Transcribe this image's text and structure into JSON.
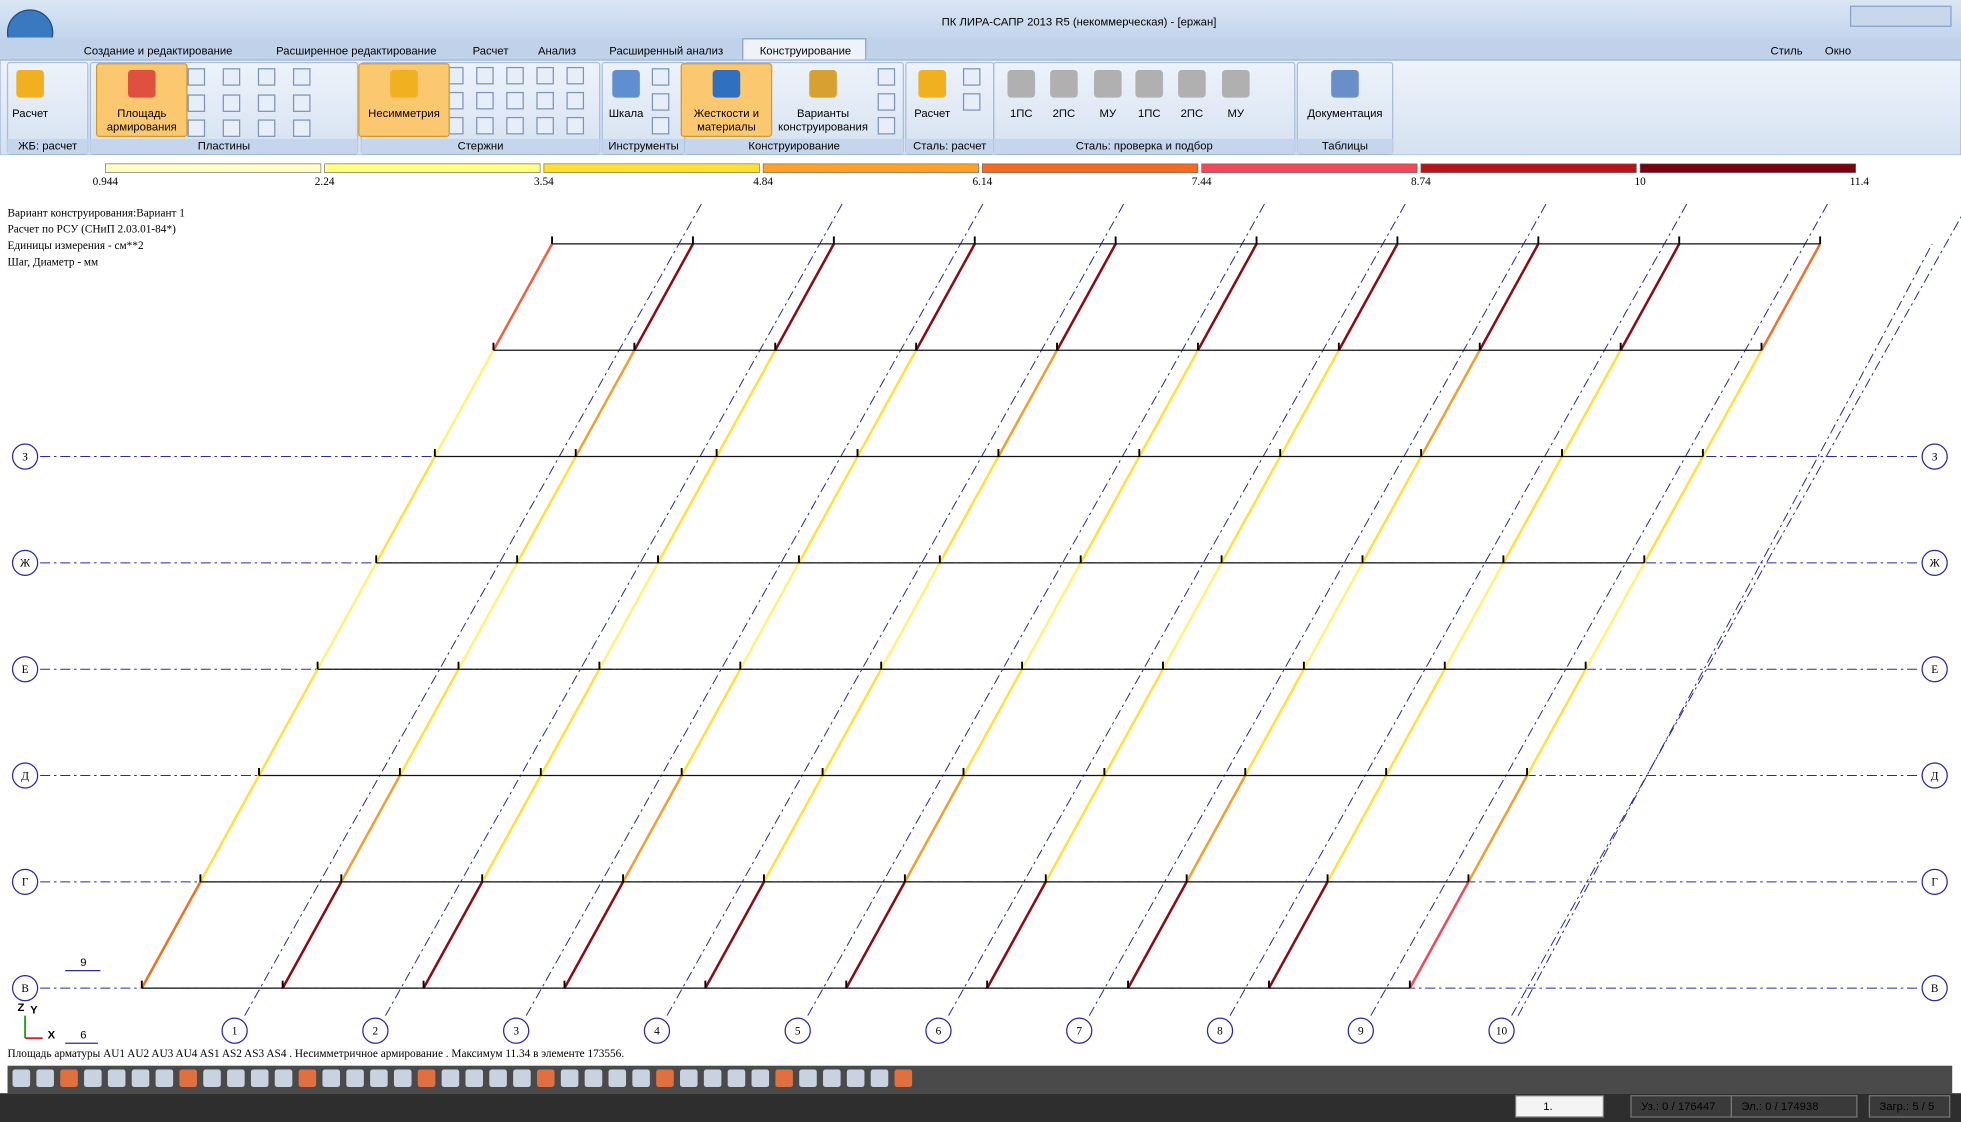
{
  "window_title": "ПК ЛИРА-САПР  2013 R5 (некоммерческая) - [ержан]",
  "tabs": [
    "Создание и редактирование",
    "Расширенное редактирование",
    "Расчет",
    "Анализ",
    "Расширенный анализ",
    "Конструирование"
  ],
  "menu_right": [
    "Стиль",
    "Окно"
  ],
  "ribbon": {
    "buttons": [
      [
        "Расчет"
      ],
      [
        "Площадь",
        "армирования"
      ],
      [
        "Несимметрия"
      ],
      [
        "Шкала"
      ],
      [
        "Жесткости и",
        "материалы"
      ],
      [
        "Варианты",
        "конструирования"
      ],
      [
        "Расчет"
      ],
      [
        "1ПС"
      ],
      [
        "2ПС"
      ],
      [
        "МУ"
      ],
      [
        "1ПС"
      ],
      [
        "2ПС"
      ],
      [
        "МУ"
      ],
      [
        "Документация"
      ]
    ],
    "groups": [
      "ЖБ: расчет",
      "Пластины",
      "Стержни",
      "Инструменты",
      "Конструирование",
      "Сталь: расчет",
      "Сталь: проверка и подбор",
      "Таблицы"
    ]
  },
  "scale": {
    "ticks": [
      0.944,
      2.24,
      3.54,
      4.84,
      6.14,
      7.44,
      8.74,
      10,
      11.4
    ],
    "colors": [
      "#ffffc8",
      "#ffff80",
      "#ffe030",
      "#ffa028",
      "#f56a20",
      "#f04858",
      "#b81418",
      "#7a0010"
    ]
  },
  "info": [
    "Вариант конструирования:Вариант 1",
    "Расчет по РСУ (СНиП 2.03.01-84*)",
    "Единицы измерения - см**2",
    "Шаг, Диаметр - мм"
  ],
  "axes": {
    "rows": [
      "З",
      "Ж",
      "Е",
      "Д",
      "Г",
      "В"
    ],
    "columns": [
      "1",
      "2",
      "3",
      "4",
      "5",
      "6",
      "7",
      "8",
      "9",
      "10"
    ]
  },
  "coord_labels": [
    "Z",
    "Y",
    "X",
    "9",
    "6"
  ],
  "message": "Площадь арматуры AU1 AU2 AU3 AU4 AS1 AS2 AS3 AS4 . Несимметричное армирование . Максимум 11.34 в элементе 173556.",
  "status": [
    "1.",
    "Уз.: 0 / 176447",
    "Эл.: 0 / 174938",
    "Загр.: 5 / 5"
  ]
}
